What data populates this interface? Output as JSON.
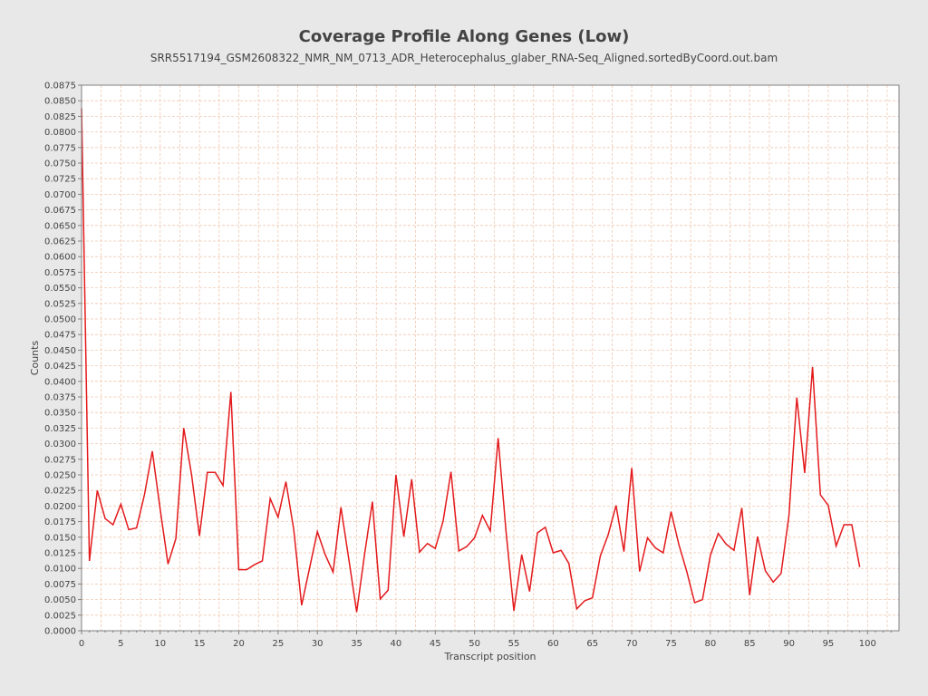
{
  "chart_data": {
    "type": "line",
    "title": "Coverage Profile Along Genes (Low)",
    "subtitle": "SRR5517194_GSM2608322_NMR_NM_0713_ADR_Heterocephalus_glaber_RNA-Seq_Aligned.sortedByCoord.out.bam",
    "xlabel": "Transcript position",
    "ylabel": "Counts",
    "xlim": [
      0,
      104
    ],
    "ylim": [
      0,
      0.0875
    ],
    "xticks": [
      0,
      5,
      10,
      15,
      20,
      25,
      30,
      35,
      40,
      45,
      50,
      55,
      60,
      65,
      70,
      75,
      80,
      85,
      90,
      95,
      100
    ],
    "yticks": [
      "0.0000",
      "0.0025",
      "0.0050",
      "0.0075",
      "0.0100",
      "0.0125",
      "0.0150",
      "0.0175",
      "0.0200",
      "0.0225",
      "0.0250",
      "0.0275",
      "0.0300",
      "0.0325",
      "0.0350",
      "0.0375",
      "0.0400",
      "0.0425",
      "0.0450",
      "0.0475",
      "0.0500",
      "0.0525",
      "0.0550",
      "0.0575",
      "0.0600",
      "0.0625",
      "0.0650",
      "0.0675",
      "0.0700",
      "0.0725",
      "0.0750",
      "0.0775",
      "0.0800",
      "0.0825",
      "0.0850",
      "0.0875"
    ],
    "grid": true,
    "legend": "none",
    "colors": {
      "line": "#e31a1c",
      "grid": "#f0c8b0",
      "plot_bg": "#ffffff",
      "page_bg": "#e8e8e8"
    },
    "series": [
      {
        "x": [
          0,
          1,
          2,
          3,
          4,
          5,
          6,
          7,
          8,
          9,
          10,
          11,
          12,
          13,
          14,
          15,
          16,
          17,
          18,
          19,
          20,
          21,
          22,
          23,
          24,
          25,
          26,
          27,
          28,
          29,
          30,
          31,
          32,
          33,
          34,
          35,
          36,
          37,
          38,
          39,
          40,
          41,
          42,
          43,
          44,
          45,
          46,
          47,
          48,
          49,
          50,
          51,
          52,
          53,
          54,
          55,
          56,
          57,
          58,
          59,
          60,
          61,
          62,
          63,
          64,
          65,
          66,
          67,
          68,
          69,
          70,
          71,
          72,
          73,
          74,
          75,
          76,
          77,
          78,
          79,
          80,
          81,
          82,
          83,
          84,
          85,
          86,
          87,
          88,
          89,
          90,
          91,
          92,
          93,
          94,
          95,
          96,
          97,
          98,
          99
        ],
        "values": [
          0.0838,
          0.0112,
          0.0225,
          0.018,
          0.017,
          0.0203,
          0.0162,
          0.0165,
          0.0218,
          0.0288,
          0.0195,
          0.0107,
          0.0148,
          0.0325,
          0.025,
          0.0152,
          0.0254,
          0.0254,
          0.0233,
          0.0383,
          0.0098,
          0.0098,
          0.0106,
          0.0112,
          0.0212,
          0.0182,
          0.0239,
          0.0162,
          0.0041,
          0.01,
          0.0159,
          0.0122,
          0.0094,
          0.0198,
          0.0115,
          0.003,
          0.0122,
          0.0207,
          0.0051,
          0.0065,
          0.025,
          0.0151,
          0.0243,
          0.0126,
          0.014,
          0.0132,
          0.0176,
          0.0255,
          0.0128,
          0.0135,
          0.0149,
          0.0185,
          0.016,
          0.0309,
          0.016,
          0.0032,
          0.0122,
          0.0063,
          0.0157,
          0.0166,
          0.0125,
          0.0129,
          0.0108,
          0.0035,
          0.0048,
          0.0053,
          0.012,
          0.0154,
          0.0201,
          0.0127,
          0.0261,
          0.0095,
          0.0149,
          0.0133,
          0.0125,
          0.0191,
          0.0138,
          0.0095,
          0.0045,
          0.005,
          0.0121,
          0.0156,
          0.0139,
          0.0129,
          0.0197,
          0.0057,
          0.0151,
          0.0096,
          0.0078,
          0.0092,
          0.0185,
          0.0374,
          0.0253,
          0.0423,
          0.0218,
          0.0201,
          0.0136,
          0.017,
          0.017,
          0.0102
        ]
      }
    ]
  }
}
